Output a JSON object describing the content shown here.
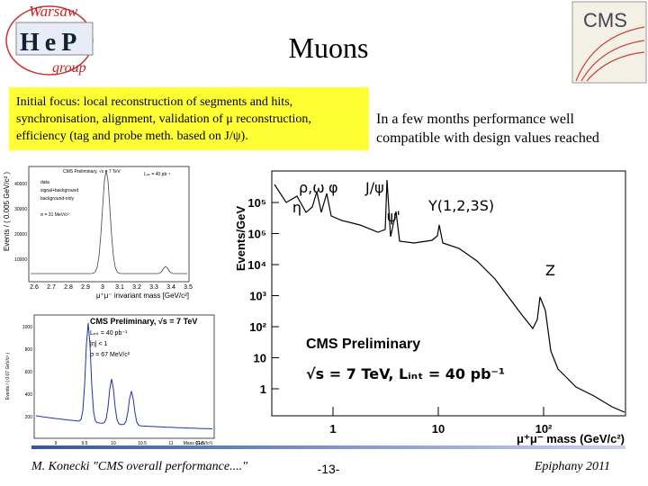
{
  "header": {
    "title": "Muons",
    "logo_left": {
      "top": "Warsaw",
      "middle": "HeP",
      "bottom": "group"
    },
    "logo_right": "CMS"
  },
  "intro_box": {
    "lines": [
      "Initial focus: local reconstruction of segments and hits,",
      "synchronisation, alignment, validation of μ reconstruction,",
      "efficiency (tag and probe meth. based on J/ψ)."
    ]
  },
  "summary": {
    "lines": [
      "In a few months performance well",
      "compatible with design values reached"
    ]
  },
  "spectrum_plot": {
    "y_label": "Events/GeV",
    "x_label": "μ⁺μ⁻ mass (GeV/c²)",
    "yticks": [
      "1",
      "10",
      "10²",
      "10³",
      "10⁴",
      "10⁵",
      "10⁵"
    ],
    "xticks": [
      "1",
      "10",
      "10²"
    ],
    "peaks": [
      "η",
      "ρ,ω",
      "φ",
      "J/ψ",
      "ψ'",
      "Υ(1,2,3S)",
      "Z"
    ],
    "caption": "CMS Preliminary",
    "conditions": "√s = 7 TeV,  Lᵢₙₜ = 40 pb⁻¹"
  },
  "jpsi_plot": {
    "y_label": "Events / ( 0.005 GeV/c² )",
    "x_label": "μ⁺μ⁻ invariant mass [GeV/c²]",
    "legend": [
      "CMS Preliminary, √s = 7 TeV",
      "Lᵢₙₜ = 40 pb⁻¹",
      "data",
      "signal+background",
      "background-only",
      "σ = 31 MeV/c²"
    ],
    "xticks": [
      "2.6",
      "2.7",
      "2.8",
      "2.9",
      "3",
      "3.1",
      "3.2",
      "3.3",
      "3.4",
      "3.5"
    ],
    "yticks": [
      "10000",
      "20000",
      "30000",
      "40000"
    ]
  },
  "upsilon_plot": {
    "y_label": "Events / ( 0.07 GeV/c² )",
    "x_label": "Mass (GeV/c²)",
    "legend": [
      "CMS Preliminary, √s = 7 TeV",
      "Lᵢₙₜ = 40 pb⁻¹",
      "|η| < 1",
      "σ = 67 MeV/c²"
    ],
    "xticks": [
      "9",
      "9.5",
      "10",
      "10.5",
      "11",
      "11.5"
    ],
    "yticks": [
      "200",
      "400",
      "600",
      "800",
      "1000"
    ]
  },
  "footer": {
    "author": "M. Konecki  \"CMS overall performance....\"",
    "page": "-13-",
    "event": "Epiphany 2011"
  }
}
